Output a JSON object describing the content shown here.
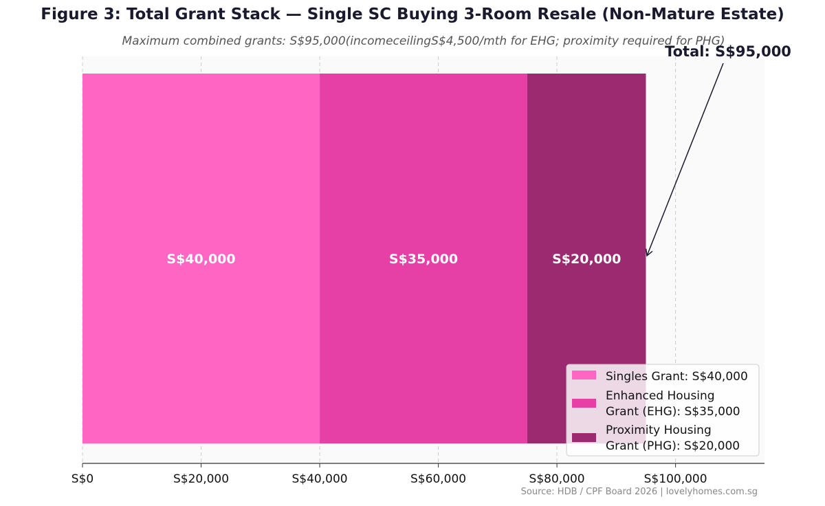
{
  "title": "Figure 3: Total Grant Stack — Single SC Buying 3-Room Resale (Non-Mature Estate)",
  "subtitle": "Maximum combined grants: S$95,000(incomeceilingS$4,500/mth for EHG; proximity required for PHG)",
  "source": "Source: HDB / CPF Board 2026  |  lovelyhomes.com.sg",
  "chart_data": {
    "type": "bar",
    "orientation": "horizontal-stacked",
    "segments": [
      {
        "name": "Singles Grant: S$40,000",
        "value": 40000,
        "label": "S$40,000",
        "color": "#ff66c4"
      },
      {
        "name": "Enhanced Housing Grant (EHG): S$35,000",
        "legend_lines": [
          "Enhanced Housing",
          "Grant (EHG): S$35,000"
        ],
        "value": 35000,
        "label": "S$35,000",
        "color": "#e640a6"
      },
      {
        "name": "Proximity Housing Grant (PHG): S$20,000",
        "legend_lines": [
          "Proximity Housing",
          "Grant (PHG): S$20,000"
        ],
        "value": 20000,
        "label": "S$20,000",
        "color": "#9b2a70"
      }
    ],
    "total": 95000,
    "annotation": "Total: S$95,000",
    "xlim": [
      0,
      115000
    ],
    "xticks": [
      0,
      20000,
      40000,
      60000,
      80000,
      100000
    ],
    "xtick_labels": [
      "S$0",
      "S$20,000",
      "S$40,000",
      "S$60,000",
      "S$80,000",
      "S$100,000"
    ],
    "grid": "vertical-dashed",
    "legend_position": "bottom-right"
  }
}
